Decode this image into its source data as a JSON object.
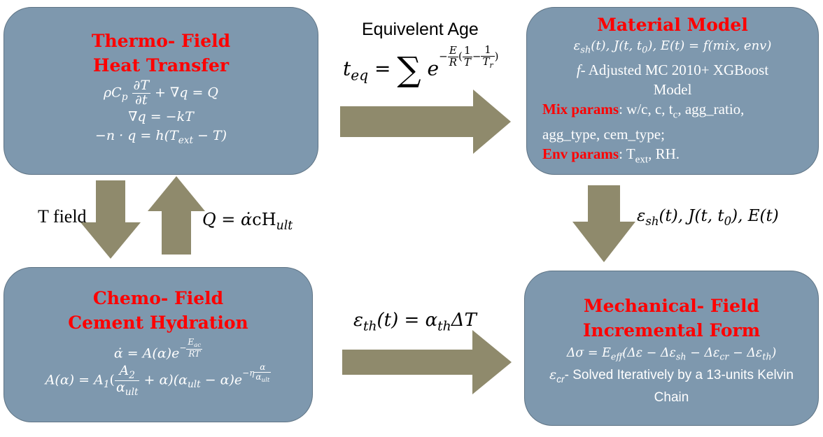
{
  "colors": {
    "box_fill": "#7e98ae",
    "box_border": "#5f7485",
    "title": "#ff0000",
    "arrow": "#8f8a6c"
  },
  "thermo": {
    "title1": "Thermo- Field",
    "title2": "Heat Transfer",
    "eq_rho": "ρC",
    "eq_rho_sub": "p",
    "eq_dT": "∂T",
    "eq_dt": "∂t",
    "eq_tail": "+ ∇q = Q",
    "eq2": "∇q = −kT",
    "eq3_a": "−n · q = h(T",
    "eq3_sub": "ext",
    "eq3_b": " − T)"
  },
  "equivalent_age": {
    "label": "Equivelent Age",
    "teq": "t",
    "teq_sub": "eq",
    "equals": " = ",
    "sum": "∑",
    "e": "e",
    "exp_minus": "−",
    "exp_E": "E",
    "exp_R": "R",
    "exp_open": "(",
    "exp_1a": "1",
    "exp_T": "T",
    "exp_mid": "−",
    "exp_1b": "1",
    "exp_Tr": "T",
    "exp_Tr_sub": "r",
    "exp_close": ")"
  },
  "material": {
    "title": "Material Model",
    "eq_a": "ε",
    "eq_a_sub": "sh",
    "eq_b": "(t), J(t, t",
    "eq_b_sub": "0",
    "eq_c": "), E(t) = f(mix, env)",
    "f_italic": "f",
    "f_desc": "- Adjusted MC 2010+ XGBoost",
    "model": "Model",
    "mix_label": "Mix params",
    "mix_text1": ": w/c, c, t",
    "mix_sub": "c",
    "mix_text2": ", agg_ratio,",
    "mix_text3": "agg_type, cem_type;",
    "env_label": "Env params",
    "env_text1": ": T",
    "env_sub": "ext",
    "env_text2": ", RH."
  },
  "t_field": {
    "label": "T field"
  },
  "q_label": {
    "q": "Q = ",
    "alpha": "α̇",
    "c": "cH",
    "sub": "ult"
  },
  "right_label": {
    "a": "ε",
    "a_sub": "sh",
    "b": "(t), J(t, t",
    "b_sub": "0",
    "c": "), E(t)"
  },
  "chemo": {
    "title1": "Chemo- Field",
    "title2": "Cement Hydration",
    "eq1_a": "α̇ = A(α)e",
    "eq1_exp_minus": "−",
    "eq1_exp_num": "E",
    "eq1_exp_num_sub": "ac",
    "eq1_exp_den": "RT",
    "eq2_a": "A(α) = A",
    "eq2_a_sub": "1",
    "eq2_open": "(",
    "eq2_num": "A",
    "eq2_num_sub": "2",
    "eq2_den": "α",
    "eq2_den_sub": "ult",
    "eq2_b": " + α)(α",
    "eq2_b_sub": "ult",
    "eq2_c": " − α)e",
    "eq2_exp_minus": "−η",
    "eq2_exp_num": "α",
    "eq2_exp_den": "α",
    "eq2_exp_den_sub": "ult"
  },
  "thermal_strain": {
    "a": "ε",
    "a_sub": "th",
    "b": "(t) = α",
    "b_sub": "th",
    "c": "ΔT"
  },
  "mechanical": {
    "title1": "Mechanical- Field",
    "title2": "Incremental Form",
    "eq_a": "Δσ = E",
    "eq_a_sub": "eff",
    "eq_b": "(Δε − Δε",
    "eq_b_sub": "sh",
    "eq_c": " − Δε",
    "eq_c_sub": "cr",
    "eq_d": " − Δε",
    "eq_d_sub": "th",
    "eq_e": ")",
    "cr": "ε",
    "cr_sub": "cr",
    "desc1": "- Solved Iteratively by a 13-units Kelvin",
    "desc2": "Chain"
  }
}
